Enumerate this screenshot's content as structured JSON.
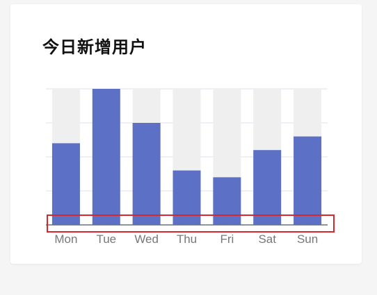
{
  "card": {
    "title": "今日新增用户"
  },
  "colors": {
    "bar": "#5c70c6",
    "bar_background": "#efefef",
    "grid": "#dde0ee",
    "axis": "#6e7079",
    "highlight": "#d9262c"
  },
  "chart_data": {
    "type": "bar",
    "title": "今日新增用户",
    "xlabel": "",
    "ylabel": "",
    "categories": [
      "Mon",
      "Tue",
      "Wed",
      "Thu",
      "Fri",
      "Sat",
      "Sun"
    ],
    "values": [
      120,
      200,
      150,
      80,
      70,
      110,
      130
    ],
    "ylim": [
      0,
      200
    ],
    "bar_background": true,
    "grid": true,
    "y_ticks_visible": false
  }
}
